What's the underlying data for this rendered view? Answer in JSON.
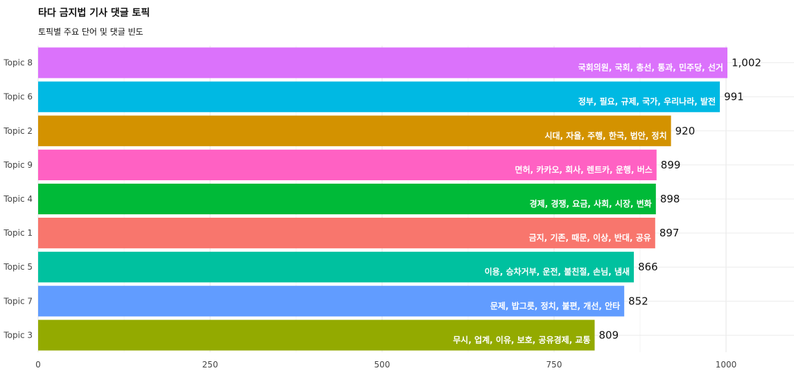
{
  "title": "타다 금지법 기사 댓글 토픽",
  "subtitle": "토픽별 주요 단어 및 댓글 빈도",
  "chart_data": {
    "type": "bar",
    "orientation": "horizontal",
    "categories": [
      "Topic 8",
      "Topic 6",
      "Topic 2",
      "Topic 9",
      "Topic 4",
      "Topic 1",
      "Topic 5",
      "Topic 7",
      "Topic 3"
    ],
    "values": [
      1002,
      991,
      920,
      899,
      898,
      897,
      866,
      852,
      809
    ],
    "value_labels": [
      "1,002",
      "991",
      "920",
      "899",
      "898",
      "897",
      "866",
      "852",
      "809"
    ],
    "bar_text": [
      "국회의원, 국회, 총선, 통과, 민주당, 선거",
      "정부, 필요, 규제, 국가, 우리나라, 발전",
      "시대, 자율, 주행, 한국, 법안, 정치",
      "면허, 카카오, 회사, 렌트카, 운행, 버스",
      "경제, 경쟁, 요금, 사회, 시장, 변화",
      "금지, 기존, 때문, 이상, 반대, 공유",
      "이용, 승차거부, 운전, 불친절, 손님, 냄새",
      "문제, 밥그릇, 정치, 불편, 개선, 안타",
      "무시, 업계, 이유, 보호, 공유경제, 교통"
    ],
    "colors": [
      "#DB72FB",
      "#00B9E3",
      "#D39200",
      "#FF61C3",
      "#00BA38",
      "#F8766D",
      "#00C19F",
      "#619CFF",
      "#93AA00"
    ],
    "xlim": [
      0,
      1100
    ],
    "x_ticks": [
      0,
      250,
      500,
      750,
      1000
    ],
    "x_tick_labels": [
      "0",
      "250",
      "500",
      "750",
      "1000"
    ],
    "xlabel": "",
    "ylabel": "",
    "grid": true
  }
}
